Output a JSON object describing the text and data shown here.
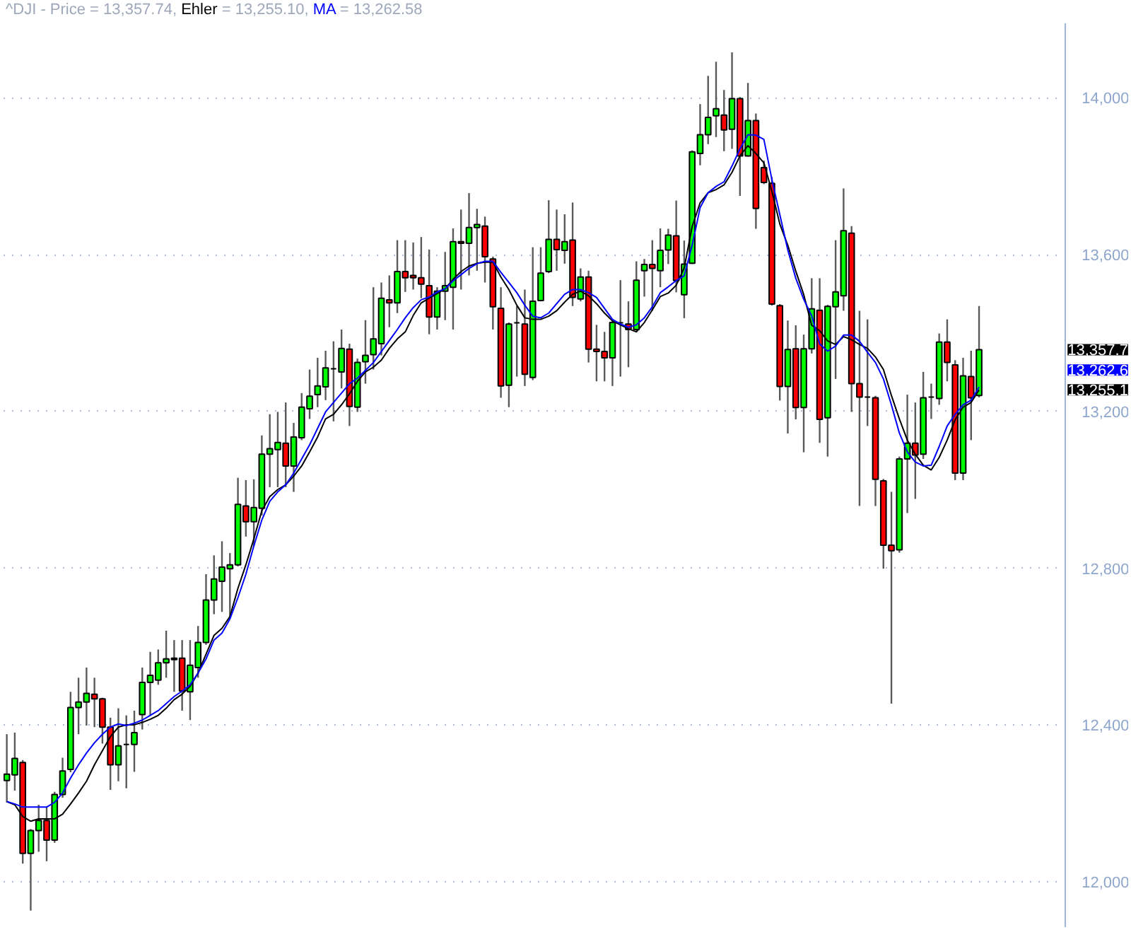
{
  "chart_data": {
    "type": "candlestick",
    "title": "^DJI - Price = 13,357.74,",
    "categories": [
      null,
      null,
      null,
      null,
      null,
      null,
      null,
      null,
      null,
      null,
      null,
      null,
      null,
      null,
      null,
      null,
      null,
      null,
      null,
      null,
      null,
      null,
      null,
      null,
      null,
      null,
      null,
      null,
      null,
      null,
      null,
      null,
      null,
      null,
      null,
      null,
      null,
      null,
      null,
      null,
      null,
      null,
      null,
      null,
      null,
      null,
      null,
      null,
      null,
      null,
      null,
      null,
      null,
      null,
      null,
      null,
      null,
      null,
      null,
      null,
      null,
      null,
      null,
      null,
      null,
      null,
      null,
      null,
      null,
      null,
      null,
      null,
      null,
      null,
      null,
      null,
      null,
      null,
      null,
      null,
      null,
      null,
      null,
      null,
      null,
      null,
      null,
      null,
      null,
      null,
      null,
      null,
      null,
      null,
      null,
      null,
      null,
      null,
      null,
      null,
      null,
      null,
      null,
      null,
      null,
      null,
      null,
      null,
      null,
      null,
      null,
      null,
      null,
      null,
      null,
      null,
      null,
      null,
      null,
      null,
      null,
      null,
      null
    ],
    "ohlc": [
      [
        12259,
        12377,
        12203,
        12275
      ],
      [
        12273,
        12381,
        12233,
        12315
      ],
      [
        12305,
        12311,
        12047,
        12073
      ],
      [
        12073,
        12135,
        11927,
        12131
      ],
      [
        12131,
        12197,
        12077,
        12157
      ],
      [
        12157,
        12191,
        12053,
        12107
      ],
      [
        12107,
        12230,
        12100,
        12223
      ],
      [
        12223,
        12317,
        12215,
        12283
      ],
      [
        12287,
        12485,
        12280,
        12445
      ],
      [
        12445,
        12521,
        12377,
        12459
      ],
      [
        12459,
        12547,
        12399,
        12481
      ],
      [
        12479,
        12521,
        12395,
        12467
      ],
      [
        12467,
        12470,
        12353,
        12395
      ],
      [
        12395,
        12419,
        12235,
        12299
      ],
      [
        12299,
        12443,
        12257,
        12347
      ],
      [
        12351,
        12425,
        12239,
        12351
      ],
      [
        12351,
        12437,
        12281,
        12381
      ],
      [
        12427,
        12547,
        12389,
        12509
      ],
      [
        12509,
        12587,
        12425,
        12527
      ],
      [
        12515,
        12593,
        12503,
        12559
      ],
      [
        12559,
        12641,
        12521,
        12569
      ],
      [
        12567,
        12617,
        12485,
        12571
      ],
      [
        12571,
        12617,
        12437,
        12487
      ],
      [
        12485,
        12617,
        12413,
        12553
      ],
      [
        12547,
        12653,
        12521,
        12611
      ],
      [
        12611,
        12785,
        12605,
        12719
      ],
      [
        12719,
        12833,
        12683,
        12773
      ],
      [
        12767,
        12869,
        12689,
        12803
      ],
      [
        12799,
        12839,
        12677,
        12809
      ],
      [
        12809,
        13031,
        12805,
        12963
      ],
      [
        12959,
        13025,
        12881,
        12919
      ],
      [
        12919,
        13027,
        12857,
        12955
      ],
      [
        12953,
        13139,
        12935,
        13091
      ],
      [
        13091,
        13193,
        13007,
        13105
      ],
      [
        13103,
        13199,
        13007,
        13121
      ],
      [
        13119,
        13223,
        13007,
        13061
      ],
      [
        13061,
        13171,
        12995,
        13135
      ],
      [
        13133,
        13247,
        13127,
        13211
      ],
      [
        13207,
        13307,
        13181,
        13239
      ],
      [
        13243,
        13337,
        13211,
        13265
      ],
      [
        13263,
        13355,
        13229,
        13311
      ],
      [
        13309,
        13379,
        13175,
        13309
      ],
      [
        13301,
        13409,
        13259,
        13361
      ],
      [
        13359,
        13373,
        13163,
        13213
      ],
      [
        13211,
        13335,
        13199,
        13325
      ],
      [
        13327,
        13433,
        13271,
        13343
      ],
      [
        13345,
        13517,
        13307,
        13385
      ],
      [
        13373,
        13529,
        13343,
        13489
      ],
      [
        13485,
        13547,
        13415,
        13477
      ],
      [
        13477,
        13637,
        13451,
        13557
      ],
      [
        13557,
        13637,
        13505,
        13541
      ],
      [
        13547,
        13631,
        13511,
        13541
      ],
      [
        13541,
        13645,
        13489,
        13525
      ],
      [
        13521,
        13613,
        13397,
        13441
      ],
      [
        13441,
        13517,
        13409,
        13507
      ],
      [
        13507,
        13607,
        13433,
        13521
      ],
      [
        13517,
        13667,
        13409,
        13633
      ],
      [
        13633,
        13715,
        13511,
        13629
      ],
      [
        13629,
        13757,
        13547,
        13669
      ],
      [
        13669,
        13717,
        13559,
        13677
      ],
      [
        13673,
        13697,
        13529,
        13595
      ],
      [
        13589,
        13595,
        13409,
        13467
      ],
      [
        13463,
        13517,
        13235,
        13265
      ],
      [
        13267,
        13427,
        13211,
        13423
      ],
      [
        13426,
        13469,
        13289,
        13426
      ],
      [
        13423,
        13511,
        13265,
        13295
      ],
      [
        13287,
        13619,
        13280,
        13481
      ],
      [
        13483,
        13619,
        13481,
        13553
      ],
      [
        13557,
        13739,
        13553,
        13639
      ],
      [
        13639,
        13715,
        13559,
        13613
      ],
      [
        13611,
        13703,
        13577,
        13633
      ],
      [
        13637,
        13733,
        13469,
        13491
      ],
      [
        13487,
        13565,
        13481,
        13543
      ],
      [
        13543,
        13559,
        13325,
        13359
      ],
      [
        13359,
        13421,
        13277,
        13353
      ],
      [
        13353,
        13403,
        13277,
        13337
      ],
      [
        13337,
        13433,
        13265,
        13427
      ],
      [
        13426,
        13535,
        13289,
        13426
      ],
      [
        13423,
        13481,
        13313,
        13409
      ],
      [
        13409,
        13583,
        13405,
        13535
      ],
      [
        13559,
        13589,
        13493,
        13575
      ],
      [
        13575,
        13637,
        13457,
        13565
      ],
      [
        13559,
        13667,
        13517,
        13611
      ],
      [
        13612,
        13666,
        13576,
        13650
      ],
      [
        13648,
        13738,
        13504,
        13534
      ],
      [
        13498,
        13636,
        13438,
        13576
      ],
      [
        13578,
        13866,
        13576,
        13862
      ],
      [
        13858,
        13984,
        13828,
        13906
      ],
      [
        13906,
        14056,
        13882,
        13950
      ],
      [
        13954,
        14092,
        13900,
        13972
      ],
      [
        13956,
        14020,
        13864,
        13918
      ],
      [
        13920,
        14116,
        13870,
        13998
      ],
      [
        13998,
        14002,
        13750,
        13852
      ],
      [
        13852,
        14038,
        13850,
        13942
      ],
      [
        13942,
        13960,
        13666,
        13718
      ],
      [
        13822,
        13840,
        13780,
        13784
      ],
      [
        13782,
        13798,
        13470,
        13474
      ],
      [
        13470,
        13474,
        13228,
        13264
      ],
      [
        13264,
        13432,
        13144,
        13358
      ],
      [
        13360,
        13420,
        13180,
        13210
      ],
      [
        13210,
        13396,
        13096,
        13360
      ],
      [
        13360,
        13540,
        13348,
        13462
      ],
      [
        13458,
        13540,
        13120,
        13180
      ],
      [
        13184,
        13472,
        13085,
        13468
      ],
      [
        13467,
        13637,
        13283,
        13505
      ],
      [
        13495,
        13769,
        13457,
        13661
      ],
      [
        13655,
        13673,
        13199,
        13271
      ],
      [
        13271,
        13457,
        12959,
        13237
      ],
      [
        13237,
        13435,
        13163,
        13237
      ],
      [
        13235,
        13240,
        12959,
        13027
      ],
      [
        13023,
        13028,
        12799,
        12859
      ],
      [
        12859,
        12995,
        12455,
        12845
      ],
      [
        12847,
        13085,
        12840,
        13079
      ],
      [
        13079,
        13243,
        12941,
        13119
      ],
      [
        13119,
        13223,
        12977,
        13089
      ],
      [
        13091,
        13301,
        13079,
        13235
      ],
      [
        13237,
        13271,
        13181,
        13237
      ],
      [
        13233,
        13399,
        13217,
        13377
      ],
      [
        13377,
        13435,
        13277,
        13325
      ],
      [
        13319,
        13331,
        13025,
        13043
      ],
      [
        13043,
        13337,
        13025,
        13291
      ],
      [
        13289,
        13355,
        13127,
        13235
      ],
      [
        13241,
        13469,
        13236,
        13357.74
      ]
    ],
    "colors": [
      "#00ff00",
      "#00ff00",
      "#ff0000",
      "#00ff00",
      "#00ff00",
      "#ff0000",
      "#00ff00",
      "#00ff00",
      "#00ff00",
      "#00ff00",
      "#00ff00",
      "#ff0000",
      "#ff0000",
      "#ff0000",
      "#00ff00",
      "#000000",
      "#00ff00",
      "#00ff00",
      "#00ff00",
      "#00ff00",
      "#00ff00",
      "#00ff00",
      "#ff0000",
      "#00ff00",
      "#00ff00",
      "#00ff00",
      "#00ff00",
      "#00ff00",
      "#00ff00",
      "#00ff00",
      "#ff0000",
      "#00ff00",
      "#00ff00",
      "#00ff00",
      "#00ff00",
      "#ff0000",
      "#00ff00",
      "#00ff00",
      "#00ff00",
      "#00ff00",
      "#00ff00",
      "#000000",
      "#00ff00",
      "#ff0000",
      "#00ff00",
      "#00ff00",
      "#00ff00",
      "#00ff00",
      "#ff0000",
      "#00ff00",
      "#ff0000",
      "#ff0000",
      "#ff0000",
      "#ff0000",
      "#00ff00",
      "#00ff00",
      "#00ff00",
      "#ff0000",
      "#00ff00",
      "#00ff00",
      "#ff0000",
      "#ff0000",
      "#ff0000",
      "#00ff00",
      "#000000",
      "#ff0000",
      "#00ff00",
      "#00ff00",
      "#00ff00",
      "#ff0000",
      "#00ff00",
      "#ff0000",
      "#00ff00",
      "#ff0000",
      "#ff0000",
      "#ff0000",
      "#00ff00",
      "#000000",
      "#ff0000",
      "#00ff00",
      "#00ff00",
      "#ff0000",
      "#00ff00",
      "#00ff00",
      "#ff0000",
      "#00ff00",
      "#00ff00",
      "#00ff00",
      "#00ff00",
      "#00ff00",
      "#ff0000",
      "#00ff00",
      "#ff0000",
      "#00ff00",
      "#ff0000",
      "#ff0000",
      "#ff0000",
      "#ff0000",
      "#00ff00",
      "#ff0000",
      "#00ff00",
      "#00ff00",
      "#ff0000",
      "#00ff00",
      "#00ff00",
      "#00ff00",
      "#ff0000",
      "#ff0000",
      "#000000",
      "#ff0000",
      "#ff0000",
      "#ff0000",
      "#00ff00",
      "#00ff00",
      "#ff0000",
      "#00ff00",
      "#000000",
      "#00ff00",
      "#ff0000",
      "#ff0000",
      "#00ff00",
      "#ff0000",
      "#00ff00"
    ],
    "series": [
      {
        "type": "line",
        "name": "Ehler = 13,255.10,",
        "color": "#000000",
        "values": [
          12205,
          12197,
          12167,
          12155,
          12161,
          12161,
          12161,
          12173,
          12199,
          12227,
          12257,
          12299,
          12335,
          12371,
          12395,
          12401,
          12401,
          12407,
          12415,
          12425,
          12443,
          12465,
          12479,
          12499,
          12533,
          12581,
          12629,
          12647,
          12677,
          12749,
          12809,
          12875,
          12947,
          12983,
          13001,
          13013,
          13035,
          13061,
          13097,
          13135,
          13181,
          13193,
          13217,
          13245,
          13277,
          13301,
          13313,
          13331,
          13361,
          13385,
          13403,
          13445,
          13477,
          13489,
          13501,
          13513,
          13537,
          13557,
          13571,
          13578,
          13581,
          13581,
          13543,
          13511,
          13471,
          13439,
          13435,
          13435,
          13443,
          13457,
          13479,
          13499,
          13507,
          13495,
          13475,
          13451,
          13431,
          13421,
          13411,
          13403,
          13427,
          13459,
          13493,
          13502,
          13522,
          13566,
          13672,
          13732,
          13758,
          13766,
          13778,
          13810,
          13852,
          13878,
          13858,
          13834,
          13762,
          13678,
          13624,
          13558,
          13498,
          13420,
          13406,
          13380,
          13371,
          13391,
          13383,
          13371,
          13361,
          13339,
          13307,
          13241,
          13181,
          13127,
          13091,
          13063,
          13051,
          13083,
          13127,
          13179,
          13211,
          13223,
          13255.1
        ]
      },
      {
        "type": "line",
        "name": "MA = 13,262.58",
        "color": "#0000ff",
        "values": [
          12205,
          12199,
          12191,
          12191,
          12191,
          12191,
          12203,
          12227,
          12265,
          12299,
          12329,
          12355,
          12377,
          12395,
          12403,
          12399,
          12405,
          12413,
          12425,
          12437,
          12455,
          12473,
          12487,
          12503,
          12533,
          12569,
          12617,
          12635,
          12671,
          12725,
          12785,
          12857,
          12923,
          12971,
          12995,
          13013,
          13043,
          13079,
          13115,
          13157,
          13199,
          13223,
          13247,
          13271,
          13285,
          13305,
          13325,
          13353,
          13381,
          13409,
          13439,
          13465,
          13485,
          13492,
          13505,
          13513,
          13533,
          13549,
          13565,
          13577,
          13583,
          13583,
          13555,
          13529,
          13503,
          13471,
          13443,
          13439,
          13451,
          13475,
          13499,
          13511,
          13511,
          13503,
          13491,
          13463,
          13435,
          13423,
          13415,
          13421,
          13439,
          13467,
          13503,
          13518,
          13534,
          13546,
          13624,
          13720,
          13758,
          13774,
          13786,
          13826,
          13870,
          13906,
          13905,
          13894,
          13792,
          13702,
          13612,
          13540,
          13486,
          13444,
          13372,
          13354,
          13367,
          13395,
          13395,
          13379,
          13351,
          13325,
          13283,
          13217,
          13145,
          13097,
          13071,
          13061,
          13063,
          13111,
          13163,
          13193,
          13217,
          13229,
          13262.58
        ]
      }
    ],
    "ylim": [
      11885,
      14190
    ],
    "yticks": [
      {
        "value": 12000,
        "label": "12,000"
      },
      {
        "value": 12400,
        "label": "12,400"
      },
      {
        "value": 12800,
        "label": "12,800"
      },
      {
        "value": 13200,
        "label": "13,200"
      },
      {
        "value": 13600,
        "label": "13,600"
      },
      {
        "value": 14000,
        "label": "14,000"
      }
    ],
    "grid": "y",
    "tick_labels": "y",
    "annotations": [
      "13,357.7",
      "13,255.1",
      "13,262.6"
    ]
  }
}
